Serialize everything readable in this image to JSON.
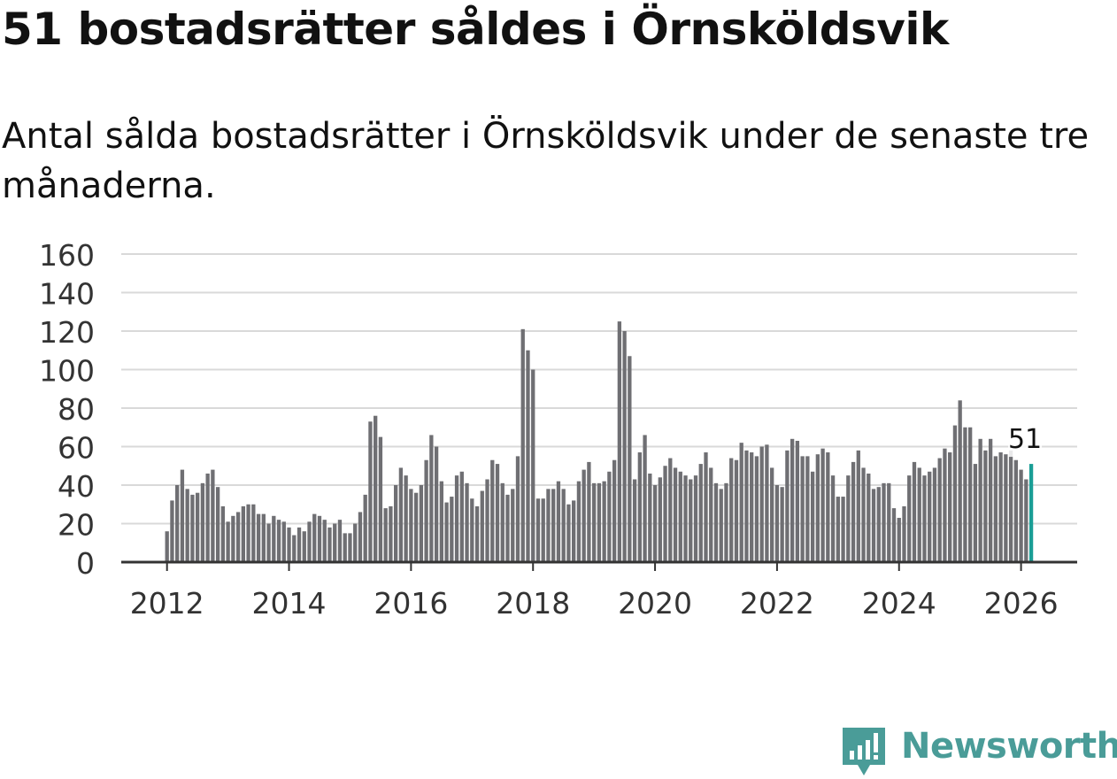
{
  "title": "51 bostadsrätter såldes i Örnsköldsvik",
  "subtitle": "Antal sålda bostadsrätter i Örnsköldsvik under de senaste tre månaderna.",
  "colors": {
    "bar": "#6f6f73",
    "highlight": "#1a9e96",
    "grid": "#d9d9d9",
    "axis": "#333333",
    "brand": "#4a9c98"
  },
  "brand": {
    "name": "Newsworthy",
    "icon": "newsworthy-logo-icon"
  },
  "chart_data": {
    "type": "bar",
    "title": "51 bostadsrätter såldes i Örnsköldsvik",
    "xlabel": "",
    "ylabel": "",
    "ylim": [
      0,
      160
    ],
    "yticks": [
      0,
      20,
      40,
      60,
      80,
      100,
      120,
      140,
      160
    ],
    "ytick_labels": [
      "0",
      "20",
      "40",
      "60",
      "80",
      "100",
      "120",
      "140",
      "160"
    ],
    "xlim": [
      2011.25,
      2026.92
    ],
    "xticks": [
      2012,
      2014,
      2016,
      2018,
      2020,
      2022,
      2024,
      2026
    ],
    "xtick_labels": [
      "2012",
      "2014",
      "2016",
      "2018",
      "2020",
      "2022",
      "2024",
      "2026"
    ],
    "x_start": 2012.0,
    "x_step": 0.083333,
    "grid": true,
    "highlight_label": "51",
    "values": [
      16,
      32,
      40,
      48,
      38,
      35,
      36,
      41,
      46,
      48,
      39,
      29,
      21,
      24,
      26,
      29,
      30,
      30,
      25,
      25,
      20,
      24,
      22,
      21,
      18,
      14,
      18,
      16,
      21,
      25,
      24,
      22,
      18,
      20,
      22,
      15,
      15,
      20,
      26,
      35,
      73,
      76,
      65,
      28,
      29,
      40,
      49,
      45,
      38,
      36,
      40,
      53,
      66,
      60,
      42,
      31,
      34,
      45,
      47,
      41,
      33,
      29,
      37,
      43,
      53,
      51,
      41,
      35,
      38,
      55,
      121,
      110,
      100,
      33,
      33,
      38,
      38,
      42,
      38,
      30,
      32,
      42,
      48,
      52,
      41,
      41,
      42,
      47,
      53,
      125,
      120,
      107,
      43,
      57,
      66,
      46,
      40,
      44,
      50,
      54,
      49,
      47,
      45,
      43,
      45,
      51,
      57,
      49,
      41,
      38,
      41,
      54,
      53,
      62,
      58,
      57,
      55,
      60,
      61,
      49,
      40,
      39,
      58,
      64,
      63,
      55,
      55,
      47,
      56,
      59,
      57,
      45,
      34,
      34,
      45,
      52,
      58,
      49,
      46,
      38,
      39,
      41,
      41,
      28,
      23,
      29,
      45,
      52,
      49,
      45,
      47,
      49,
      54,
      59,
      57,
      71,
      84,
      70,
      70,
      51,
      64,
      58,
      64,
      55,
      57,
      56,
      58,
      53,
      48,
      43,
      51
    ]
  }
}
